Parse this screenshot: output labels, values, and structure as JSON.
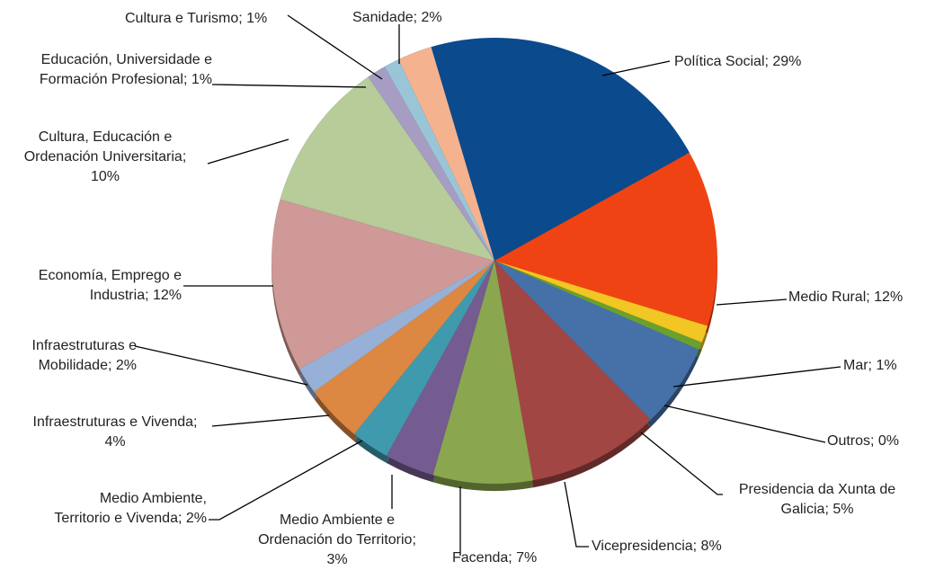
{
  "chart_data": {
    "type": "pie",
    "title": "",
    "slices": [
      {
        "key": "politica",
        "label": "Política Social; 29%",
        "name": "Política Social",
        "value": 29,
        "color": "#0B4A8C"
      },
      {
        "key": "medio_rural",
        "label": "Medio Rural; 12%",
        "name": "Medio Rural",
        "value": 12,
        "color": "#F04314"
      },
      {
        "key": "mar",
        "label": "Mar; 1%",
        "name": "Mar",
        "value": 1,
        "color": "#F2C623"
      },
      {
        "key": "outros",
        "label": "Outros; 0%",
        "name": "Outros",
        "value": 0,
        "color": "#6AA02E"
      },
      {
        "key": "presidencia",
        "label": "Presidencia da Xunta de Galicia; 5%",
        "name": "Presidencia da Xunta de Galicia",
        "value": 5,
        "color": "#4571A8"
      },
      {
        "key": "vicepresidencia",
        "label": "Vicepresidencia; 8%",
        "name": "Vicepresidencia",
        "value": 8,
        "color": "#A14643"
      },
      {
        "key": "facenda",
        "label": "Facenda; 7%",
        "name": "Facenda",
        "value": 7,
        "color": "#8AA74F"
      },
      {
        "key": "medio_amb_ord",
        "label": "Medio Ambiente e Ordenación do Territorio; 3%",
        "name": "Medio Ambiente e Ordenación do Territorio",
        "value": 3,
        "color": "#745C91"
      },
      {
        "key": "medio_amb_viv",
        "label": "Medio Ambiente, Territorio e Vivenda; 2%",
        "name": "Medio Ambiente, Territorio e Vivenda",
        "value": 2,
        "color": "#3F9AAE"
      },
      {
        "key": "infra_viv",
        "label": "Infraestruturas e Vivenda; 4%",
        "name": "Infraestruturas e Vivenda",
        "value": 4,
        "color": "#DC8742"
      },
      {
        "key": "infra_mob",
        "label": "Infraestruturas e Mobilidade; 2%",
        "name": "Infraestruturas e Mobilidade",
        "value": 2,
        "color": "#97B0D8"
      },
      {
        "key": "economia",
        "label": "Economía, Emprego e Industria; 12%",
        "name": "Economía, Emprego e Industria",
        "value": 12,
        "color": "#CE9996"
      },
      {
        "key": "cultura_edu",
        "label": "Cultura, Educación e Ordenación Universitaria; 10%",
        "name": "Cultura, Educación e Ordenación Universitaria",
        "value": 10,
        "color": "#B8CC9A"
      },
      {
        "key": "educacion",
        "label": "Educación, Universidade e Formación Profesional; 1%",
        "name": "Educación, Universidade e Formación Profesional",
        "value": 1,
        "color": "#A79DC2"
      },
      {
        "key": "cultura_tur",
        "label": "Cultura e Turismo; 1%",
        "name": "Cultura e Turismo",
        "value": 1,
        "color": "#9AC5D6"
      },
      {
        "key": "sanidade",
        "label": "Sanidade; 2%",
        "name": "Sanidade",
        "value": 2,
        "color": "#F5B28E"
      }
    ],
    "labels": {
      "politica": [
        "Política Social; 29%"
      ],
      "medio_rural": [
        "Medio Rural; 12%"
      ],
      "mar": [
        "Mar; 1%"
      ],
      "outros": [
        "Outros; 0%"
      ],
      "presidencia": [
        "Presidencia da Xunta de",
        "Galicia; 5%"
      ],
      "vicepresidencia": [
        "Vicepresidencia; 8%"
      ],
      "facenda": [
        "Facenda; 7%"
      ],
      "medio_amb_ord": [
        "Medio Ambiente e",
        "Ordenación do Territorio;",
        "3%"
      ],
      "medio_amb_viv": [
        "Medio Ambiente,",
        "Territorio e Vivenda; 2%"
      ],
      "infra_viv": [
        "Infraestruturas e Vivenda;",
        "4%"
      ],
      "infra_mob": [
        "Infraestruturas e",
        "Mobilidade; 2%"
      ],
      "economia": [
        "Economía, Emprego e",
        "Industria; 12%"
      ],
      "cultura_edu": [
        "Cultura, Educación e",
        "Ordenación Universitaria;",
        "10%"
      ],
      "educacion": [
        "Educación, Universidade e",
        "Formación Profesional; 1%"
      ],
      "cultura_tur": [
        "Cultura e Turismo; 1%"
      ],
      "sanidade": [
        "Sanidade; 2%"
      ]
    }
  }
}
